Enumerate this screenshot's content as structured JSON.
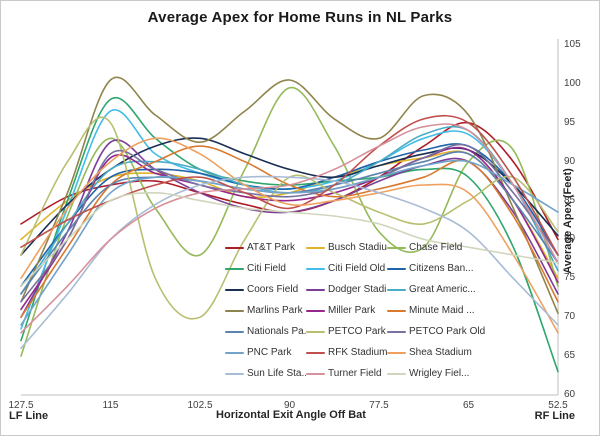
{
  "chart_data": {
    "type": "line",
    "title": "Average Apex for Home Runs in NL Parks",
    "xlabel": "Horizontal Exit Angle Off Bat",
    "ylabel": "Average Apex (Feet)",
    "annotations": {
      "bottom_left": "LF Line",
      "bottom_right": "RF Line"
    },
    "xlim": [
      127.5,
      52.5
    ],
    "ylim": [
      60,
      105
    ],
    "x_reversed": true,
    "legend_position": "center-bottom",
    "legend_columns": 3,
    "grid": false,
    "x_ticks": [
      "127.5",
      "115",
      "102.5",
      "90",
      "77.5",
      "65",
      "52.5"
    ],
    "x_tick_values": [
      127.5,
      115,
      102.5,
      90,
      77.5,
      65,
      52.5
    ],
    "y_ticks": [
      105,
      100,
      95,
      90,
      85,
      80,
      75,
      70,
      65,
      60
    ],
    "x": [
      127.5,
      121,
      115,
      108.75,
      102.5,
      96.25,
      90,
      83.75,
      77.5,
      71.25,
      65,
      58.75,
      52.5
    ],
    "series": [
      {
        "name": "AT&T Park",
        "label": "AT&T Park",
        "color": "#ae1c28",
        "values": [
          82,
          85.5,
          87,
          87.5,
          86,
          84.5,
          83.5,
          85,
          88,
          92,
          95,
          90,
          80
        ]
      },
      {
        "name": "Busch Stadium",
        "label": "Busch Stadiu...",
        "color": "#e0b426",
        "values": [
          80,
          85,
          88,
          88.5,
          87.5,
          85.5,
          86,
          88,
          89.5,
          90.5,
          91,
          85,
          75
        ]
      },
      {
        "name": "Chase Field",
        "label": "Chase Field",
        "color": "#94ba5a",
        "values": [
          65,
          83,
          93,
          84,
          78,
          89,
          99.5,
          92,
          81,
          79,
          90,
          91.5,
          74
        ]
      },
      {
        "name": "Citi Field",
        "label": "Citi Field",
        "color": "#2fa66e",
        "values": [
          67,
          85,
          98,
          93,
          89,
          87.5,
          87,
          87.5,
          88,
          89,
          88,
          79,
          63
        ]
      },
      {
        "name": "Citi Field Old",
        "label": "Citi Field Old",
        "color": "#41bde8",
        "values": [
          68.5,
          84,
          96.5,
          91,
          88.5,
          87,
          86.5,
          87.5,
          90,
          93,
          93.5,
          87,
          77
        ]
      },
      {
        "name": "Citizens Bank",
        "label": "Citizens Ban...",
        "color": "#1f63a8",
        "values": [
          74,
          82,
          88,
          89,
          88.5,
          87,
          86.5,
          88,
          90,
          91.5,
          92,
          87,
          78
        ]
      },
      {
        "name": "Coors Field",
        "label": "Coors Field",
        "color": "#1b2f55",
        "values": [
          78,
          84.5,
          89,
          92,
          93,
          91,
          89,
          88,
          89.5,
          91,
          91.5,
          87,
          80.5
        ]
      },
      {
        "name": "Dodger Stadium",
        "label": "Dodger Stadi...",
        "color": "#7c3e97",
        "values": [
          70,
          81,
          92.5,
          89,
          86,
          84,
          83.5,
          85,
          87.5,
          89.5,
          90,
          83.5,
          73
        ]
      },
      {
        "name": "Great American",
        "label": "Great Americ...",
        "color": "#4bacc6",
        "values": [
          73,
          82,
          89,
          90,
          89,
          87,
          86,
          87,
          90,
          93.5,
          94,
          87,
          76
        ]
      },
      {
        "name": "Marlins Park",
        "label": "Marlins Park",
        "color": "#8f844b",
        "values": [
          72,
          86,
          100.5,
          96,
          92.5,
          96.5,
          100.5,
          95.5,
          93,
          98.5,
          96,
          84,
          70.5
        ]
      },
      {
        "name": "Miller Park",
        "label": "Miller Park",
        "color": "#94288e",
        "values": [
          71,
          80,
          90.5,
          88.5,
          87,
          85.5,
          85,
          86,
          88,
          90.5,
          91.5,
          85,
          74.5
        ]
      },
      {
        "name": "Minute Maid",
        "label": "Minute Maid ...",
        "color": "#d9792f",
        "values": [
          70,
          79,
          87,
          90,
          92,
          90,
          87,
          85.5,
          86.5,
          88,
          90,
          83,
          72
        ]
      },
      {
        "name": "Nationals Park",
        "label": "Nationals Pa...",
        "color": "#5b83b0",
        "values": [
          73,
          81,
          87,
          88,
          87.5,
          86.5,
          86,
          87,
          88.5,
          90,
          91,
          85,
          77
        ]
      },
      {
        "name": "PETCO Park",
        "label": "PETCO Park",
        "color": "#b9bf6f",
        "values": [
          78,
          90,
          95,
          75,
          70,
          80,
          88,
          86,
          83.5,
          82,
          85,
          88,
          81
        ]
      },
      {
        "name": "PETCO Park Old",
        "label": "PETCO Park Old",
        "color": "#77719f",
        "values": [
          72,
          80,
          91,
          89,
          87,
          86,
          85.5,
          86.5,
          88,
          90.5,
          92,
          86,
          78
        ]
      },
      {
        "name": "PNC Park",
        "label": "PNC Park",
        "color": "#72a4c9",
        "values": [
          69,
          78,
          86,
          88,
          87.5,
          86.5,
          86,
          86.5,
          88,
          89.5,
          90,
          87,
          83.5
        ]
      },
      {
        "name": "RFK Stadium",
        "label": "RFK Stadium",
        "color": "#c0504d",
        "values": [
          79,
          82.5,
          85,
          87,
          88,
          86,
          84,
          87,
          92,
          95.5,
          95,
          88,
          78
        ]
      },
      {
        "name": "Shea Stadium",
        "label": "Shea Stadium",
        "color": "#efa05f",
        "values": [
          75,
          84,
          90,
          93,
          91,
          87,
          84.5,
          85,
          86,
          87,
          86,
          78,
          68
        ]
      },
      {
        "name": "Sun Life Stadium",
        "label": "Sun Life Sta...",
        "color": "#a9bcd5",
        "values": [
          66,
          73,
          80,
          84.5,
          87,
          88,
          88,
          87.5,
          86,
          84,
          81,
          75,
          69
        ]
      },
      {
        "name": "Turner Field",
        "label": "Turner Field",
        "color": "#d6919b",
        "values": [
          68,
          74,
          80,
          84,
          86,
          86.5,
          87,
          89,
          92,
          94.5,
          94,
          87,
          77
        ]
      },
      {
        "name": "Wrigley Field",
        "label": "Wrigley Fiel...",
        "color": "#cfd6bc",
        "values": [
          74,
          80,
          85,
          86,
          85,
          84,
          83.5,
          83,
          82,
          80,
          79,
          78,
          77
        ]
      }
    ],
    "axis_color": "#bfbfbf"
  }
}
